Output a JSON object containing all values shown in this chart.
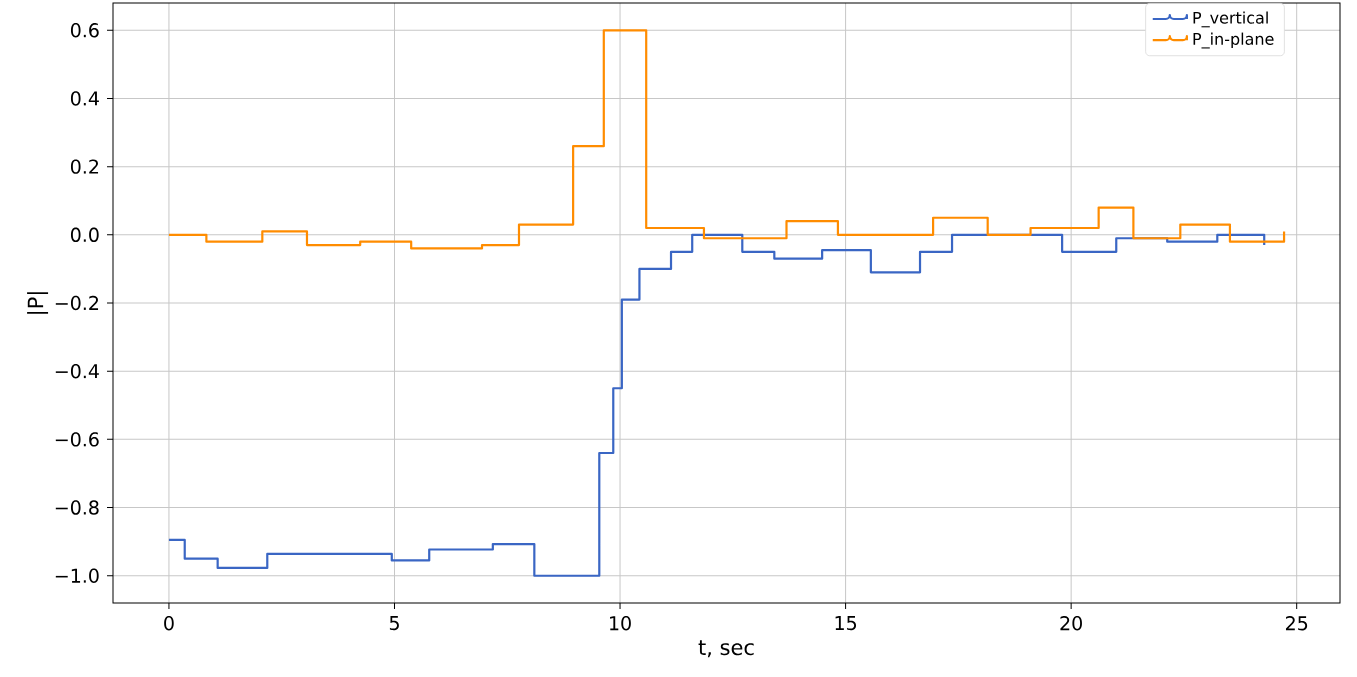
{
  "chart_data": {
    "type": "step",
    "xlabel": "t, sec",
    "ylabel": "|P|",
    "xlim": [
      -1.24,
      25.96
    ],
    "ylim": [
      -1.08,
      0.68
    ],
    "xticks": [
      0,
      5,
      10,
      15,
      20,
      25
    ],
    "yticks": [
      {
        "value": -1.0,
        "label": "−1.0"
      },
      {
        "value": -0.8,
        "label": "−0.8"
      },
      {
        "value": -0.6,
        "label": "−0.6"
      },
      {
        "value": -0.4,
        "label": "−0.4"
      },
      {
        "value": -0.2,
        "label": "−0.2"
      },
      {
        "value": 0.0,
        "label": "0.0"
      },
      {
        "value": 0.2,
        "label": "0.2"
      },
      {
        "value": 0.4,
        "label": "0.4"
      },
      {
        "value": 0.6,
        "label": "0.6"
      }
    ],
    "grid": true,
    "legend": "top right",
    "marker": "none",
    "line_style": "solid",
    "series": [
      {
        "name": "P_vertical",
        "color": "#3a66c4",
        "x": [
          0,
          0.35,
          1.08,
          2.18,
          4.94,
          5.77,
          7.18,
          8.1,
          9.54,
          9.85,
          10.04,
          10.43,
          11.13,
          11.6,
          12.71,
          13.42,
          14.48,
          15.56,
          16.65,
          17.36,
          19.8,
          21.0,
          22.13,
          23.24,
          24.28
        ],
        "values": [
          -0.895,
          -0.95,
          -0.977,
          -0.936,
          -0.955,
          -0.923,
          -0.907,
          -1.0,
          -0.64,
          -0.45,
          -0.19,
          -0.1,
          -0.05,
          0.0,
          -0.05,
          -0.07,
          -0.045,
          -0.11,
          -0.05,
          0.0,
          -0.05,
          -0.01,
          -0.02,
          0.0,
          -0.03
        ]
      },
      {
        "name": "P_in-plane",
        "color": "#ff8c00",
        "x": [
          0,
          0.83,
          2.07,
          3.06,
          4.24,
          5.37,
          6.94,
          7.76,
          8.96,
          9.64,
          10.58,
          11.86,
          13.69,
          14.83,
          16.37,
          16.94,
          18.15,
          19.1,
          20.61,
          21.38,
          22.42,
          23.52,
          24.72
        ],
        "values": [
          0.0,
          -0.02,
          0.01,
          -0.03,
          -0.02,
          -0.04,
          -0.03,
          0.03,
          0.26,
          0.6,
          0.02,
          -0.01,
          0.04,
          0.0,
          0.0,
          0.05,
          0.0,
          0.02,
          0.08,
          -0.01,
          0.03,
          -0.02,
          0.01
        ]
      }
    ]
  }
}
